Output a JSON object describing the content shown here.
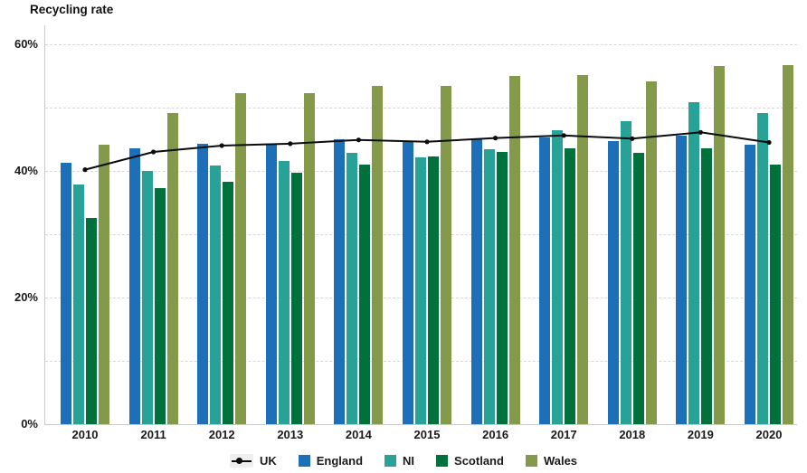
{
  "chart_data": {
    "type": "bar+line",
    "title": "Recycling rate",
    "categories": [
      "2010",
      "2011",
      "2012",
      "2013",
      "2014",
      "2015",
      "2016",
      "2017",
      "2018",
      "2019",
      "2020"
    ],
    "series": [
      {
        "name": "UK",
        "type": "line",
        "color": "#0b0c0c",
        "values": [
          40.2,
          43.0,
          44.0,
          44.3,
          44.9,
          44.6,
          45.2,
          45.6,
          45.1,
          46.1,
          44.5
        ]
      },
      {
        "name": "England",
        "type": "bar",
        "color": "#1d70b8",
        "values": [
          41.3,
          43.6,
          44.3,
          44.2,
          45.0,
          44.6,
          45.1,
          45.3,
          44.7,
          45.6,
          44.2
        ]
      },
      {
        "name": "NI",
        "type": "bar",
        "color": "#28a197",
        "values": [
          37.9,
          40.0,
          40.9,
          41.6,
          42.8,
          42.1,
          43.4,
          46.5,
          47.9,
          50.9,
          49.2
        ]
      },
      {
        "name": "Scotland",
        "type": "bar",
        "color": "#00703c",
        "values": [
          32.6,
          37.3,
          38.3,
          39.7,
          41.0,
          42.3,
          43.0,
          43.6,
          42.9,
          43.6,
          41.0
        ]
      },
      {
        "name": "Wales",
        "type": "bar",
        "color": "#85994b",
        "values": [
          44.1,
          49.1,
          52.3,
          52.3,
          53.4,
          53.4,
          55.0,
          55.1,
          54.1,
          56.6,
          56.7
        ]
      }
    ],
    "xlabel": "",
    "ylabel": "Recycling rate",
    "ylim": [
      0,
      63
    ],
    "y_ticks": [
      {
        "value": 0,
        "label": "0%"
      },
      {
        "value": 20,
        "label": "20%"
      },
      {
        "value": 40,
        "label": "40%"
      },
      {
        "value": 60,
        "label": "60%"
      }
    ],
    "gridline_step": 10,
    "grid": "dashed horizontal",
    "legend_position": "bottom"
  },
  "colors": {
    "uk_line": "#0b0c0c",
    "england": "#1d70b8",
    "ni": "#28a197",
    "scotland": "#00703c",
    "wales": "#85994b",
    "gridline": "#d8d8d8",
    "axis": "#c9c9c9",
    "text": "#1a1a1a"
  }
}
